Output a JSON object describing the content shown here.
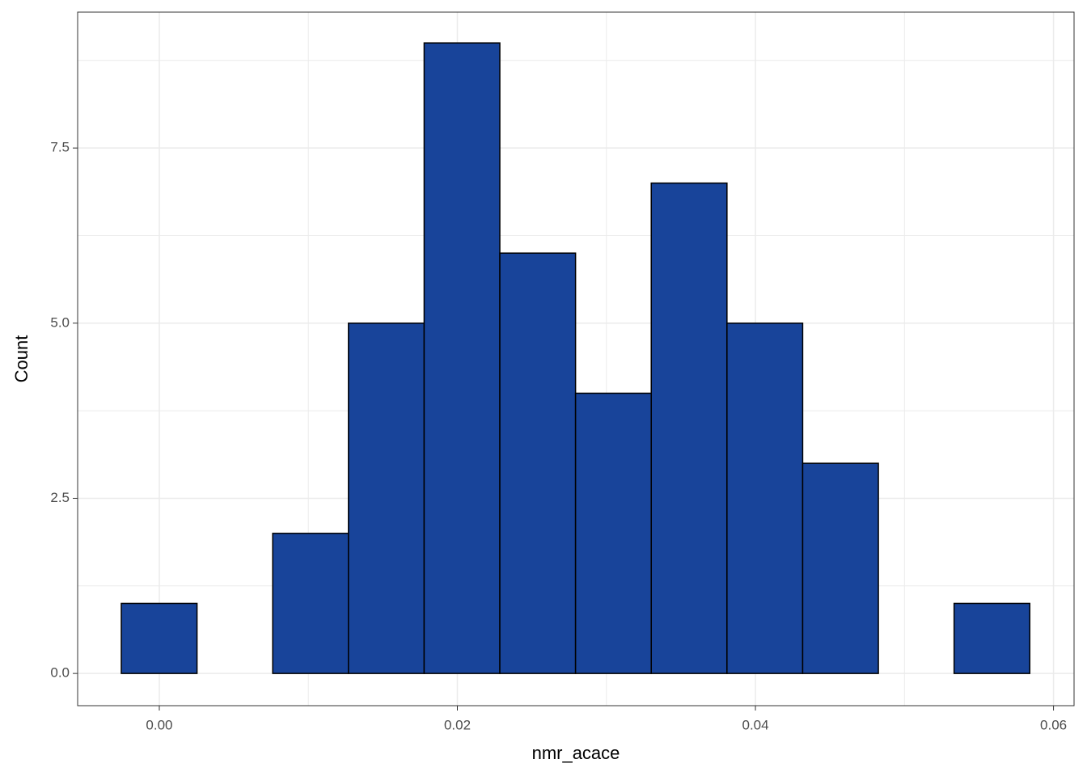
{
  "chart_data": {
    "type": "histogram",
    "x_label": "nmr_acace",
    "y_label": "Count",
    "bins": [
      -0.00255,
      0.00253,
      0.00761,
      0.01269,
      0.01777,
      0.02285,
      0.02793,
      0.03301,
      0.03809,
      0.04317,
      0.04825,
      0.05333,
      0.05841
    ],
    "values": [
      1,
      0,
      2,
      5,
      9,
      6,
      4,
      7,
      5,
      3,
      0,
      1
    ],
    "color": "#18449a",
    "edge_color": "#000000",
    "xlim": [
      -0.00548,
      0.06138
    ],
    "ylim": [
      -0.46,
      9.44
    ],
    "xticks": [
      {
        "value": 0,
        "label": "0.00"
      },
      {
        "value": 0.02,
        "label": "0.02"
      },
      {
        "value": 0.04,
        "label": "0.04"
      },
      {
        "value": 0.06,
        "label": "0.06"
      }
    ],
    "yticks": [
      {
        "value": 0,
        "label": "0.0"
      },
      2.5,
      {
        "value": 5,
        "label": "5.0"
      },
      7.5
    ],
    "x_minor_ticks": [
      0.01,
      0.03,
      0.05
    ],
    "y_minor_ticks": [
      1.25,
      3.75,
      6.25,
      8.75
    ],
    "grid": true
  }
}
